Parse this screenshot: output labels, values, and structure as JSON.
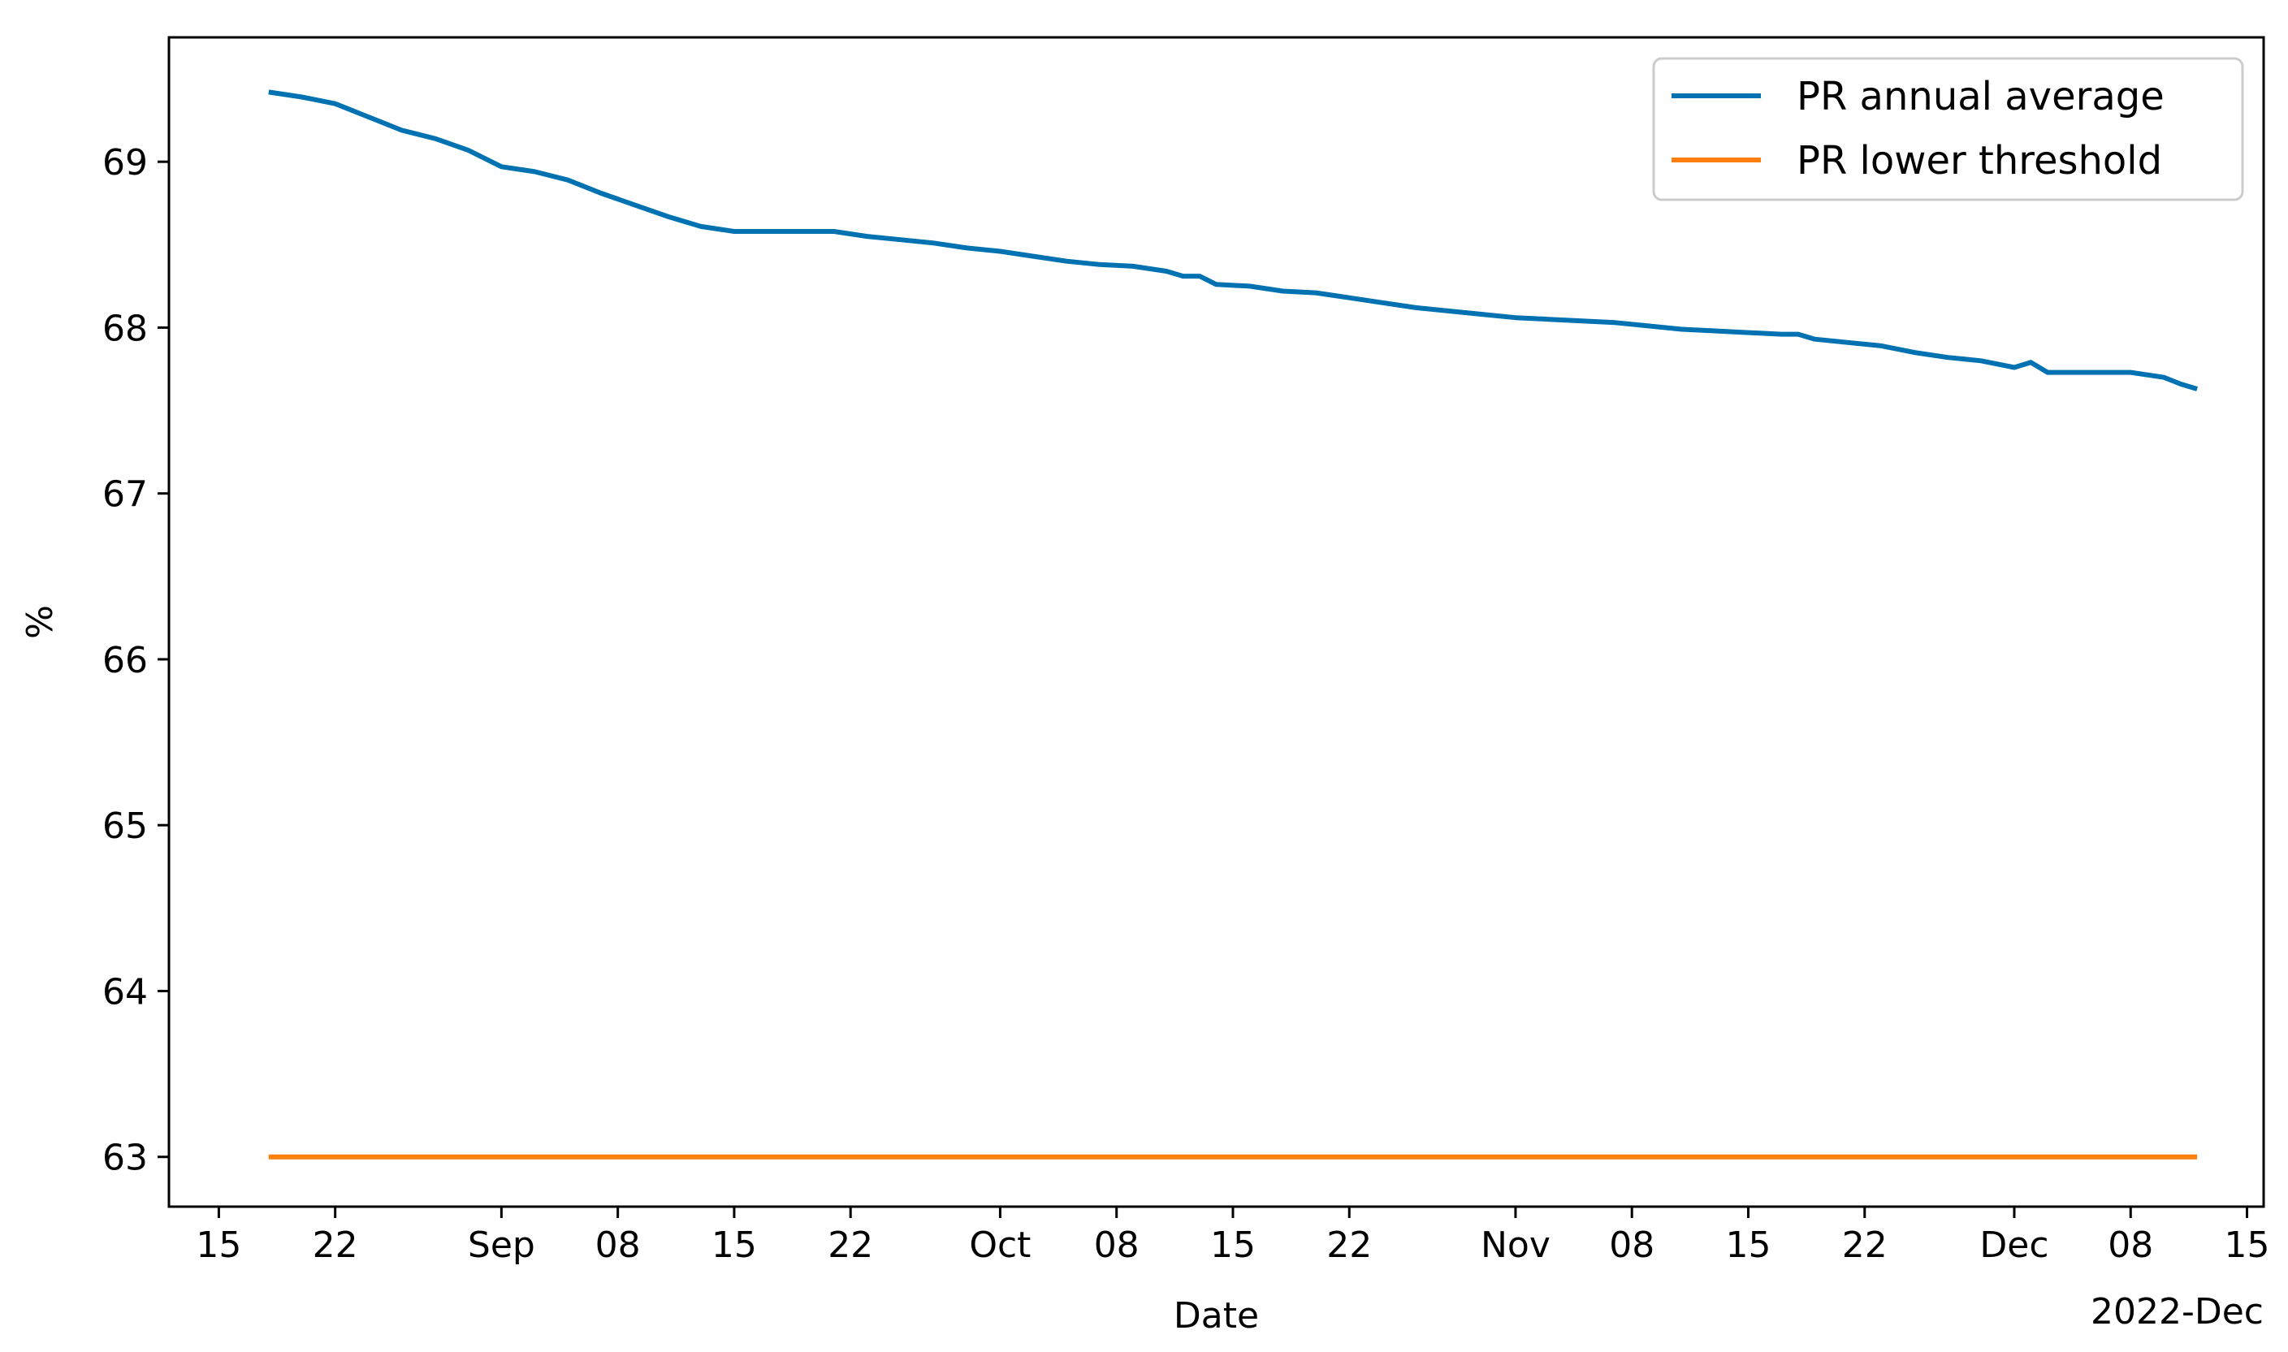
{
  "chart_data": {
    "type": "line",
    "xlabel": "Date",
    "ylabel": "%",
    "xlim": [
      "2022-08-12",
      "2022-12-16"
    ],
    "ylim": [
      62.7,
      69.75
    ],
    "grid": false,
    "legend_placement": "upper-right",
    "x_ticks": [
      {
        "date": "2022-08-15",
        "label": "15"
      },
      {
        "date": "2022-08-22",
        "label": "22"
      },
      {
        "date": "2022-09-01",
        "label": "Sep"
      },
      {
        "date": "2022-09-08",
        "label": "08"
      },
      {
        "date": "2022-09-15",
        "label": "15"
      },
      {
        "date": "2022-09-22",
        "label": "22"
      },
      {
        "date": "2022-10-01",
        "label": "Oct"
      },
      {
        "date": "2022-10-08",
        "label": "08"
      },
      {
        "date": "2022-10-15",
        "label": "15"
      },
      {
        "date": "2022-10-22",
        "label": "22"
      },
      {
        "date": "2022-11-01",
        "label": "Nov"
      },
      {
        "date": "2022-11-08",
        "label": "08"
      },
      {
        "date": "2022-11-15",
        "label": "15"
      },
      {
        "date": "2022-11-22",
        "label": "22"
      },
      {
        "date": "2022-12-01",
        "label": "Dec"
      },
      {
        "date": "2022-12-08",
        "label": "08"
      },
      {
        "date": "2022-12-15",
        "label": "15"
      }
    ],
    "x_offset_label": "2022-Dec",
    "y_ticks": [
      63,
      64,
      65,
      66,
      67,
      68,
      69
    ],
    "series": [
      {
        "name": "PR annual average",
        "color": "#0072b2",
        "points": [
          [
            "2022-08-18",
            69.42
          ],
          [
            "2022-08-20",
            69.39
          ],
          [
            "2022-08-22",
            69.35
          ],
          [
            "2022-08-24",
            69.27
          ],
          [
            "2022-08-26",
            69.19
          ],
          [
            "2022-08-28",
            69.14
          ],
          [
            "2022-08-30",
            69.07
          ],
          [
            "2022-09-01",
            68.97
          ],
          [
            "2022-09-03",
            68.94
          ],
          [
            "2022-09-05",
            68.89
          ],
          [
            "2022-09-07",
            68.81
          ],
          [
            "2022-09-09",
            68.74
          ],
          [
            "2022-09-11",
            68.67
          ],
          [
            "2022-09-13",
            68.61
          ],
          [
            "2022-09-15",
            68.58
          ],
          [
            "2022-09-17",
            68.58
          ],
          [
            "2022-09-19",
            68.58
          ],
          [
            "2022-09-21",
            68.58
          ],
          [
            "2022-09-23",
            68.55
          ],
          [
            "2022-09-25",
            68.53
          ],
          [
            "2022-09-27",
            68.51
          ],
          [
            "2022-09-29",
            68.48
          ],
          [
            "2022-10-01",
            68.46
          ],
          [
            "2022-10-03",
            68.43
          ],
          [
            "2022-10-05",
            68.4
          ],
          [
            "2022-10-07",
            68.38
          ],
          [
            "2022-10-09",
            68.37
          ],
          [
            "2022-10-11",
            68.34
          ],
          [
            "2022-10-12",
            68.31
          ],
          [
            "2022-10-13",
            68.31
          ],
          [
            "2022-10-14",
            68.26
          ],
          [
            "2022-10-16",
            68.25
          ],
          [
            "2022-10-18",
            68.22
          ],
          [
            "2022-10-20",
            68.21
          ],
          [
            "2022-10-22",
            68.18
          ],
          [
            "2022-10-24",
            68.15
          ],
          [
            "2022-10-26",
            68.12
          ],
          [
            "2022-10-28",
            68.1
          ],
          [
            "2022-10-30",
            68.08
          ],
          [
            "2022-11-01",
            68.06
          ],
          [
            "2022-11-03",
            68.05
          ],
          [
            "2022-11-05",
            68.04
          ],
          [
            "2022-11-07",
            68.03
          ],
          [
            "2022-11-09",
            68.01
          ],
          [
            "2022-11-11",
            67.99
          ],
          [
            "2022-11-13",
            67.98
          ],
          [
            "2022-11-15",
            67.97
          ],
          [
            "2022-11-17",
            67.96
          ],
          [
            "2022-11-18",
            67.96
          ],
          [
            "2022-11-19",
            67.93
          ],
          [
            "2022-11-21",
            67.91
          ],
          [
            "2022-11-23",
            67.89
          ],
          [
            "2022-11-25",
            67.85
          ],
          [
            "2022-11-27",
            67.82
          ],
          [
            "2022-11-29",
            67.8
          ],
          [
            "2022-12-01",
            67.76
          ],
          [
            "2022-12-02",
            67.79
          ],
          [
            "2022-12-03",
            67.73
          ],
          [
            "2022-12-05",
            67.73
          ],
          [
            "2022-12-07",
            67.73
          ],
          [
            "2022-12-08",
            67.73
          ],
          [
            "2022-12-10",
            67.7
          ],
          [
            "2022-12-11",
            67.66
          ],
          [
            "2022-12-12",
            67.63
          ]
        ]
      },
      {
        "name": "PR lower threshold",
        "color": "#ff7f0e",
        "points": [
          [
            "2022-08-18",
            63.0
          ],
          [
            "2022-12-12",
            63.0
          ]
        ]
      }
    ]
  }
}
